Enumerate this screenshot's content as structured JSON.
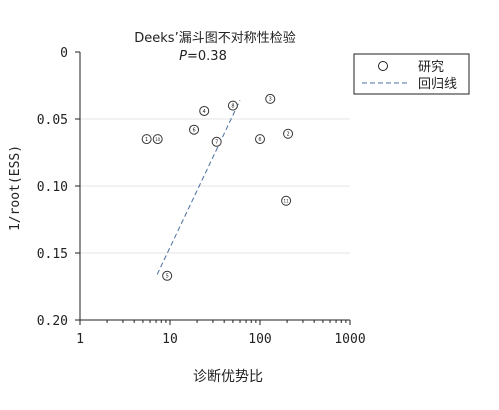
{
  "chart_data": {
    "type": "scatter",
    "title": "Deeks’漏斗图不对称性检验",
    "subtitle_italic": "P",
    "subtitle_rest": "=0.38",
    "xlabel": "诊断优势比",
    "ylabel": "1/root(ESS)",
    "x_scale": "log",
    "xlim": [
      1,
      1000
    ],
    "ylim": [
      0,
      0.2
    ],
    "y_reversed": true,
    "grid": true,
    "x_ticks": [
      {
        "value": 1,
        "label": "1"
      },
      {
        "value": 10,
        "label": "10"
      },
      {
        "value": 100,
        "label": "100"
      },
      {
        "value": 1000,
        "label": "1000"
      }
    ],
    "y_ticks": [
      {
        "value": 0,
        "label": "0"
      },
      {
        "value": 0.05,
        "label": "0.05"
      },
      {
        "value": 0.1,
        "label": "0.10"
      },
      {
        "value": 0.15,
        "label": "0.15"
      },
      {
        "value": 0.2,
        "label": "0.20"
      }
    ],
    "legend_position": "top-right",
    "legend": {
      "study_label": "研究",
      "line_label": "回归线"
    },
    "points": [
      {
        "id": "1",
        "x": 5.5,
        "y": 0.065
      },
      {
        "id": "10",
        "x": 7.3,
        "y": 0.065
      },
      {
        "id": "6",
        "x": 18.5,
        "y": 0.058
      },
      {
        "id": "4",
        "x": 24,
        "y": 0.044
      },
      {
        "id": "7",
        "x": 33,
        "y": 0.067
      },
      {
        "id": "8",
        "x": 50,
        "y": 0.04
      },
      {
        "id": "6",
        "x": 100,
        "y": 0.065
      },
      {
        "id": "3",
        "x": 130,
        "y": 0.035
      },
      {
        "id": "2",
        "x": 205,
        "y": 0.061
      },
      {
        "id": "11",
        "x": 195,
        "y": 0.111
      },
      {
        "id": "5",
        "x": 9.3,
        "y": 0.167
      }
    ],
    "regression_line": {
      "x": [
        7.2,
        60
      ],
      "y": [
        0.166,
        0.036
      ]
    },
    "colors": {
      "line": "#4a6fa0",
      "marker": "#333333",
      "axis": "#222222",
      "grid": "#e6e6e6"
    }
  }
}
